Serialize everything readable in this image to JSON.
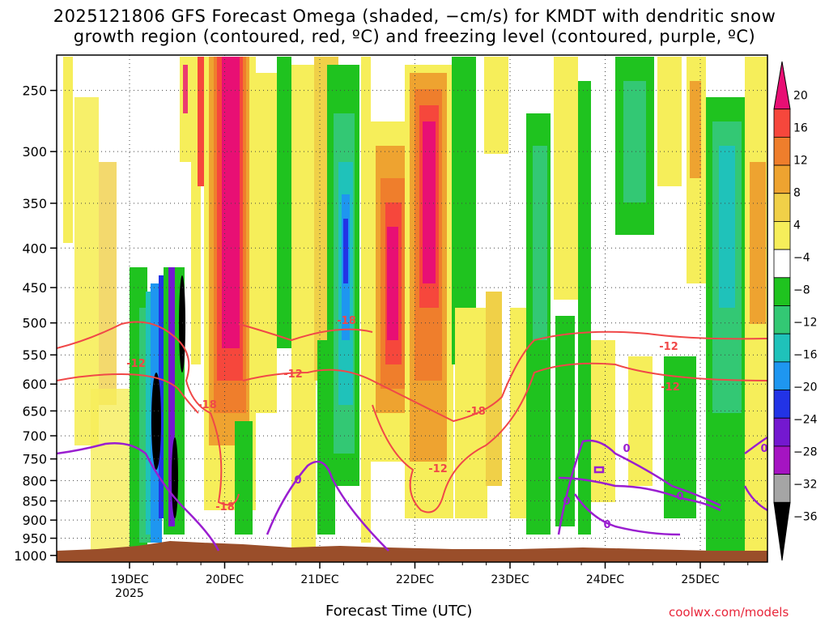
{
  "title_line1": "2025121806 GFS Forecast Omega (shaded, −cm/s) for KMDT with dendritic snow",
  "title_line2": "growth region (contoured, red, ºC) and freezing level (contoured, purple, ºC)",
  "xlabel": "Forecast Time (UTC)",
  "credit": "coolwx.com/models",
  "colors": {
    "dgz_contour": "#f04848",
    "freezing_contour": "#9a1ed0",
    "terrain": "#9a4e2a",
    "grid": "#555555"
  },
  "chart_data": {
    "type": "heatmap",
    "title": "2025121806 GFS Forecast Omega (shaded, −cm/s) for KMDT with dendritic snow growth region (contoured, red, ºC) and freezing level (contoured, purple, ºC)",
    "xlabel": "Forecast Time (UTC)",
    "ylabel": "",
    "y_scale": "log",
    "y_reversed": true,
    "y_ticks": [
      "250",
      "300",
      "350",
      "400",
      "450",
      "500",
      "550",
      "600",
      "650",
      "700",
      "750",
      "800",
      "850",
      "900",
      "950",
      "1000"
    ],
    "x_ticks": [
      "19DEC",
      "20DEC",
      "21DEC",
      "22DEC",
      "23DEC",
      "24DEC",
      "25DEC"
    ],
    "x_year_label": "2025",
    "grid": true,
    "colorbar": {
      "labels": [
        "20",
        "16",
        "12",
        "8",
        "4",
        "−4",
        "−8",
        "−12",
        "−16",
        "−20",
        "−24",
        "−28",
        "−32",
        "−36"
      ],
      "colors": [
        "#e80f74",
        "#f6473c",
        "#ef7e2c",
        "#eea330",
        "#f0d048",
        "#f6ee5a",
        "#ffffff",
        "#1fc31f",
        "#33c874",
        "#1fc2ba",
        "#1e96f0",
        "#2233e6",
        "#7418d0",
        "#a514c2",
        "#a5a5a5",
        "#000000"
      ]
    },
    "contour_labels": {
      "dgz": [
        "-12",
        "-18",
        "-12",
        "-18",
        "-18",
        "-12",
        "-18",
        "-12",
        "-12",
        "-18",
        "-12"
      ],
      "freezing": [
        "0",
        "0",
        "0",
        "0",
        "0",
        "0"
      ]
    }
  }
}
